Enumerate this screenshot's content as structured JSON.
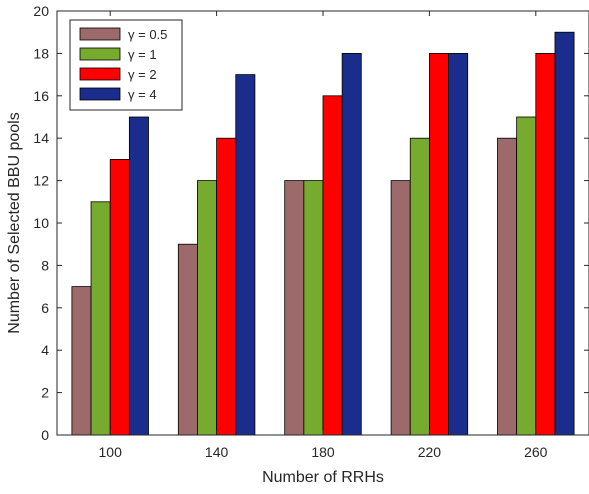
{
  "chart_data": {
    "type": "bar",
    "title": "",
    "xlabel": "Number of RRHs",
    "ylabel": "Number of Selected BBU pools",
    "categories": [
      "100",
      "140",
      "180",
      "220",
      "260"
    ],
    "ylim": [
      0,
      20
    ],
    "yticks": [
      0,
      2,
      4,
      6,
      8,
      10,
      12,
      14,
      16,
      18,
      20
    ],
    "grid": false,
    "legend_position": "top-left",
    "series": [
      {
        "name": "γ = 0.5",
        "color": "#9c6a6a",
        "values": [
          7,
          9,
          12,
          12,
          14
        ]
      },
      {
        "name": "γ = 1",
        "color": "#76ab2f",
        "values": [
          11,
          12,
          12,
          14,
          15
        ]
      },
      {
        "name": "γ = 2",
        "color": "#ff0000",
        "values": [
          13,
          14,
          16,
          18,
          18
        ]
      },
      {
        "name": "γ = 4",
        "color": "#1a2d8c",
        "values": [
          15,
          17,
          18,
          18,
          19
        ]
      }
    ]
  }
}
